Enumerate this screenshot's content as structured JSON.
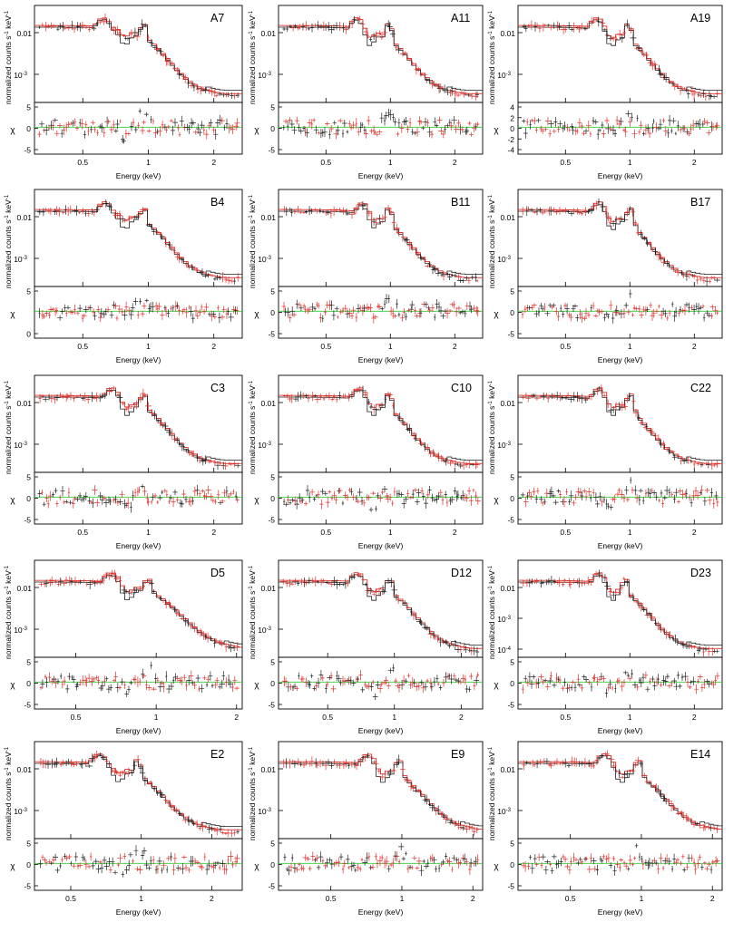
{
  "figure": {
    "rows": 5,
    "cols": 3,
    "common": {
      "ylabel_prefix": "normalized counts s",
      "ylabel_sup1": "-1",
      "ylabel_mid": " keV",
      "ylabel_sup2": "-1",
      "resid_label": "χ",
      "xlabel": "Energy (keV)",
      "series": [
        {
          "name": "data 1 / model 1",
          "color": "#222222"
        },
        {
          "name": "data 2 / model 2",
          "color": "#e0302a"
        },
        {
          "name": "zero line",
          "color": "#33cc33"
        }
      ]
    }
  },
  "chart_data": [
    {
      "type": "line",
      "title": "A7",
      "xscale": "log",
      "xlim": [
        0.3,
        2.7
      ],
      "xticks": [
        "0.5",
        "1",
        "2"
      ],
      "yticks": [
        "0.01",
        "10-3"
      ],
      "residual_yticks": [
        "5",
        "0",
        "-5"
      ],
      "shape": "a7"
    },
    {
      "type": "line",
      "title": "A11",
      "xscale": "log",
      "xlim": [
        0.3,
        2.7
      ],
      "xticks": [
        "0.5",
        "1",
        "2"
      ],
      "yticks": [
        "0.01",
        "10-3"
      ],
      "residual_yticks": [
        "5",
        "0",
        "-5"
      ],
      "shape": "a11"
    },
    {
      "type": "line",
      "title": "A19",
      "xscale": "log",
      "xlim": [
        0.3,
        2.7
      ],
      "xticks": [
        "0.5",
        "1",
        "2"
      ],
      "yticks": [
        "0.01",
        "10-3"
      ],
      "residual_yticks": [
        "4",
        "2",
        "0",
        "-2",
        "-4"
      ],
      "shape": "a19"
    },
    {
      "type": "line",
      "title": "B4",
      "xscale": "log",
      "xlim": [
        0.3,
        2.7
      ],
      "xticks": [
        "0.5",
        "1",
        "2"
      ],
      "yticks": [
        "0.01",
        "10-3"
      ],
      "residual_yticks": [
        "5",
        "0"
      ],
      "shape": "b4"
    },
    {
      "type": "line",
      "title": "B11",
      "xscale": "log",
      "xlim": [
        0.3,
        2.7
      ],
      "xticks": [
        "0.5",
        "1",
        "2"
      ],
      "yticks": [
        "0.01",
        "10-3"
      ],
      "residual_yticks": [
        "5",
        "0",
        "-5"
      ],
      "shape": "b11"
    },
    {
      "type": "line",
      "title": "B17",
      "xscale": "log",
      "xlim": [
        0.3,
        2.7
      ],
      "xticks": [
        "0.5",
        "1",
        "2"
      ],
      "yticks": [
        "0.01",
        "10-3"
      ],
      "residual_yticks": [
        "5",
        "0",
        "-5"
      ],
      "shape": "b17"
    },
    {
      "type": "line",
      "title": "C3",
      "xscale": "log",
      "xlim": [
        0.3,
        2.7
      ],
      "xticks": [
        "0.5",
        "1",
        "2"
      ],
      "yticks": [
        "0.01",
        "10-3"
      ],
      "residual_yticks": [
        "5",
        "0",
        "-5"
      ],
      "shape": "c3"
    },
    {
      "type": "line",
      "title": "C10",
      "xscale": "log",
      "xlim": [
        0.3,
        2.7
      ],
      "xticks": [
        "0.5",
        "1",
        "2"
      ],
      "yticks": [
        "0.01",
        "10-3"
      ],
      "residual_yticks": [
        "5",
        "0",
        "-5"
      ],
      "shape": "c10"
    },
    {
      "type": "line",
      "title": "C22",
      "xscale": "log",
      "xlim": [
        0.3,
        2.7
      ],
      "xticks": [
        "0.5",
        "1",
        "2"
      ],
      "yticks": [
        "0.01",
        "10-3"
      ],
      "residual_yticks": [
        "5",
        "0",
        "-5"
      ],
      "shape": "c22"
    },
    {
      "type": "line",
      "title": "D5",
      "xscale": "log",
      "xlim": [
        0.35,
        2.1
      ],
      "xticks": [
        "0.5",
        "1",
        "2"
      ],
      "yticks": [
        "0.01",
        "10-3"
      ],
      "residual_yticks": [
        "5",
        "0",
        "-5"
      ],
      "shape": "d5"
    },
    {
      "type": "line",
      "title": "D12",
      "xscale": "log",
      "xlim": [
        0.3,
        2.5
      ],
      "xticks": [
        "0.5",
        "1",
        "2"
      ],
      "yticks": [
        "0.01",
        "10-3"
      ],
      "residual_yticks": [
        "5",
        "0",
        "-5"
      ],
      "shape": "d12"
    },
    {
      "type": "line",
      "title": "D23",
      "xscale": "log",
      "xlim": [
        0.3,
        2.7
      ],
      "xticks": [
        "0.5",
        "1",
        "2"
      ],
      "yticks": [
        "0.01",
        "10-3",
        "10-4"
      ],
      "residual_yticks": [
        "5",
        "0",
        "-5"
      ],
      "shape": "d23"
    },
    {
      "type": "line",
      "title": "E2",
      "xscale": "log",
      "xlim": [
        0.35,
        2.7
      ],
      "xticks": [
        "0.5",
        "1",
        "2"
      ],
      "yticks": [
        "0.01",
        "10-3"
      ],
      "residual_yticks": [
        "5",
        "0",
        "-5"
      ],
      "shape": "e2"
    },
    {
      "type": "line",
      "title": "E9",
      "xscale": "log",
      "xlim": [
        0.3,
        2.2
      ],
      "xticks": [
        "0.5",
        "1",
        "2"
      ],
      "yticks": [
        "0.01",
        "10-3"
      ],
      "residual_yticks": [
        "5",
        "0",
        "-5"
      ],
      "shape": "e9"
    },
    {
      "type": "line",
      "title": "E14",
      "xscale": "log",
      "xlim": [
        0.3,
        2.2
      ],
      "xticks": [
        "0.5",
        "1",
        "2"
      ],
      "yticks": [
        "0.01",
        "10-3"
      ],
      "residual_yticks": [
        "5",
        "0",
        "-5"
      ],
      "shape": "e14"
    }
  ]
}
